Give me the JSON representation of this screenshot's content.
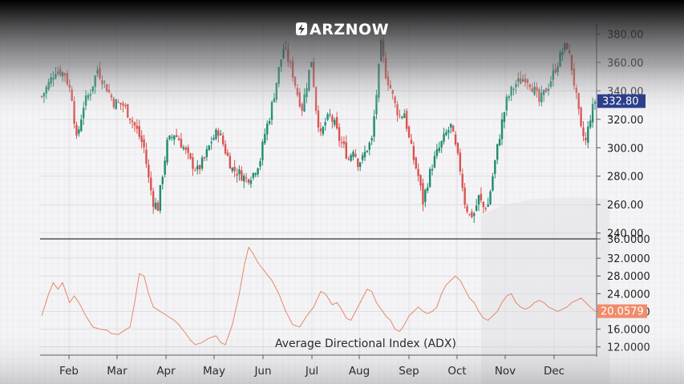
{
  "brand": {
    "logo_text": "ARZNOW",
    "logo_icon": "bolt-icon"
  },
  "colors": {
    "up": "#1e8b70",
    "down": "#d9534f",
    "adx": "#e8866a",
    "price_badge": "#2c3e8c",
    "adx_badge": "#f08c6c"
  },
  "price_badge": "332.80",
  "adx_badge": "20.0579",
  "indicator_title": "Average Directional Index (ADX)",
  "price_axis_labels": [
    "380.00",
    "360.00",
    "340.00",
    "320.00",
    "300.00",
    "280.00",
    "260.00",
    "240.00"
  ],
  "adx_axis_labels": [
    "36.0000",
    "32.0000",
    "28.0000",
    "24.0000",
    "20.0000",
    "16.0000",
    "12.0000"
  ],
  "months": [
    "Feb",
    "Mar",
    "Apr",
    "May",
    "Jun",
    "Jul",
    "Aug",
    "Sep",
    "Oct",
    "Nov",
    "Dec"
  ],
  "chart_data": [
    {
      "type": "candlestick",
      "ylim": [
        237,
        387
      ],
      "grid": true,
      "last_value": 332.8,
      "close_path": [
        [
          0,
          336
        ],
        [
          6,
          345
        ],
        [
          12,
          355
        ],
        [
          20,
          352
        ],
        [
          26,
          336
        ],
        [
          30,
          305
        ],
        [
          36,
          330
        ],
        [
          42,
          340
        ],
        [
          48,
          355
        ],
        [
          56,
          342
        ],
        [
          62,
          332
        ],
        [
          70,
          330
        ],
        [
          76,
          322
        ],
        [
          82,
          312
        ],
        [
          88,
          300
        ],
        [
          92,
          278
        ],
        [
          96,
          262
        ],
        [
          100,
          258
        ],
        [
          104,
          282
        ],
        [
          108,
          303
        ],
        [
          114,
          310
        ],
        [
          118,
          306
        ],
        [
          122,
          300
        ],
        [
          128,
          290
        ],
        [
          134,
          284
        ],
        [
          140,
          292
        ],
        [
          146,
          305
        ],
        [
          152,
          312
        ],
        [
          158,
          298
        ],
        [
          164,
          285
        ],
        [
          170,
          282
        ],
        [
          176,
          278
        ],
        [
          182,
          282
        ],
        [
          188,
          292
        ],
        [
          192,
          310
        ],
        [
          196,
          322
        ],
        [
          200,
          338
        ],
        [
          204,
          355
        ],
        [
          208,
          370
        ],
        [
          212,
          362
        ],
        [
          216,
          352
        ],
        [
          220,
          338
        ],
        [
          224,
          328
        ],
        [
          228,
          345
        ],
        [
          232,
          362
        ],
        [
          236,
          328
        ],
        [
          240,
          308
        ],
        [
          244,
          318
        ],
        [
          248,
          322
        ],
        [
          252,
          316
        ],
        [
          256,
          306
        ],
        [
          260,
          300
        ],
        [
          264,
          292
        ],
        [
          268,
          300
        ],
        [
          272,
          290
        ],
        [
          276,
          292
        ],
        [
          280,
          300
        ],
        [
          284,
          305
        ],
        [
          288,
          338
        ],
        [
          292,
          372
        ],
        [
          296,
          352
        ],
        [
          300,
          342
        ],
        [
          304,
          330
        ],
        [
          308,
          322
        ],
        [
          312,
          325
        ],
        [
          316,
          306
        ],
        [
          320,
          292
        ],
        [
          324,
          280
        ],
        [
          328,
          262
        ],
        [
          332,
          276
        ],
        [
          336,
          288
        ],
        [
          340,
          296
        ],
        [
          344,
          303
        ],
        [
          348,
          310
        ],
        [
          352,
          315
        ],
        [
          356,
          300
        ],
        [
          360,
          285
        ],
        [
          364,
          262
        ],
        [
          368,
          252
        ],
        [
          372,
          254
        ],
        [
          376,
          265
        ],
        [
          380,
          258
        ],
        [
          384,
          260
        ],
        [
          388,
          280
        ],
        [
          392,
          300
        ],
        [
          396,
          318
        ],
        [
          400,
          333
        ],
        [
          404,
          340
        ],
        [
          408,
          345
        ],
        [
          412,
          347
        ],
        [
          416,
          350
        ],
        [
          420,
          346
        ],
        [
          424,
          340
        ],
        [
          428,
          332
        ],
        [
          432,
          338
        ],
        [
          436,
          344
        ],
        [
          440,
          352
        ],
        [
          444,
          360
        ],
        [
          448,
          368
        ],
        [
          452,
          372
        ],
        [
          456,
          356
        ],
        [
          460,
          335
        ],
        [
          464,
          312
        ],
        [
          468,
          304
        ],
        [
          472,
          322
        ],
        [
          476,
          333
        ]
      ]
    },
    {
      "type": "line",
      "name": "ADX",
      "ylim": [
        10.5,
        36
      ],
      "last_value": 20.0579,
      "points": [
        [
          0,
          19
        ],
        [
          6,
          24
        ],
        [
          10,
          26.5
        ],
        [
          14,
          25
        ],
        [
          18,
          26.5
        ],
        [
          24,
          22
        ],
        [
          28,
          23.5
        ],
        [
          32,
          22
        ],
        [
          38,
          19
        ],
        [
          44,
          16.5
        ],
        [
          50,
          16
        ],
        [
          56,
          15.8
        ],
        [
          60,
          15
        ],
        [
          66,
          14.8
        ],
        [
          70,
          15.5
        ],
        [
          76,
          16.5
        ],
        [
          80,
          22
        ],
        [
          84,
          28.5
        ],
        [
          88,
          28
        ],
        [
          92,
          24
        ],
        [
          96,
          21
        ],
        [
          102,
          20
        ],
        [
          108,
          19
        ],
        [
          114,
          18
        ],
        [
          118,
          17
        ],
        [
          124,
          15
        ],
        [
          128,
          13.5
        ],
        [
          132,
          12.5
        ],
        [
          138,
          13
        ],
        [
          144,
          14
        ],
        [
          150,
          14.5
        ],
        [
          154,
          13
        ],
        [
          158,
          12.5
        ],
        [
          164,
          17
        ],
        [
          170,
          24
        ],
        [
          174,
          30
        ],
        [
          178,
          34.5
        ],
        [
          182,
          33
        ],
        [
          186,
          31
        ],
        [
          192,
          29
        ],
        [
          198,
          27
        ],
        [
          204,
          24
        ],
        [
          210,
          20
        ],
        [
          216,
          17
        ],
        [
          222,
          16.5
        ],
        [
          228,
          19
        ],
        [
          234,
          21
        ],
        [
          240,
          24.5
        ],
        [
          244,
          24
        ],
        [
          250,
          21.5
        ],
        [
          254,
          22
        ],
        [
          258,
          20.5
        ],
        [
          262,
          18.5
        ],
        [
          266,
          18
        ],
        [
          270,
          20
        ],
        [
          274,
          22
        ],
        [
          280,
          25
        ],
        [
          284,
          24.5
        ],
        [
          288,
          22
        ],
        [
          292,
          20.5
        ],
        [
          296,
          19
        ],
        [
          300,
          18
        ],
        [
          304,
          16
        ],
        [
          308,
          15.5
        ],
        [
          312,
          17
        ],
        [
          316,
          19
        ],
        [
          320,
          20
        ],
        [
          324,
          21
        ],
        [
          328,
          20
        ],
        [
          332,
          19.5
        ],
        [
          336,
          20
        ],
        [
          340,
          21
        ],
        [
          344,
          24
        ],
        [
          348,
          26
        ],
        [
          352,
          27
        ],
        [
          356,
          28
        ],
        [
          360,
          27
        ],
        [
          364,
          25
        ],
        [
          368,
          23
        ],
        [
          372,
          22
        ],
        [
          376,
          20
        ],
        [
          380,
          18.5
        ],
        [
          384,
          18
        ],
        [
          388,
          19
        ],
        [
          392,
          20
        ],
        [
          396,
          22
        ],
        [
          400,
          23.5
        ],
        [
          404,
          24
        ],
        [
          408,
          22
        ],
        [
          412,
          21
        ],
        [
          416,
          20.5
        ],
        [
          420,
          21
        ],
        [
          424,
          22
        ],
        [
          428,
          22.5
        ],
        [
          432,
          22
        ],
        [
          436,
          21
        ],
        [
          440,
          20.5
        ],
        [
          444,
          20
        ],
        [
          448,
          20.5
        ],
        [
          452,
          21
        ],
        [
          456,
          22
        ],
        [
          460,
          22.5
        ],
        [
          464,
          23
        ],
        [
          468,
          22
        ],
        [
          472,
          21
        ],
        [
          476,
          20.06
        ]
      ]
    }
  ]
}
